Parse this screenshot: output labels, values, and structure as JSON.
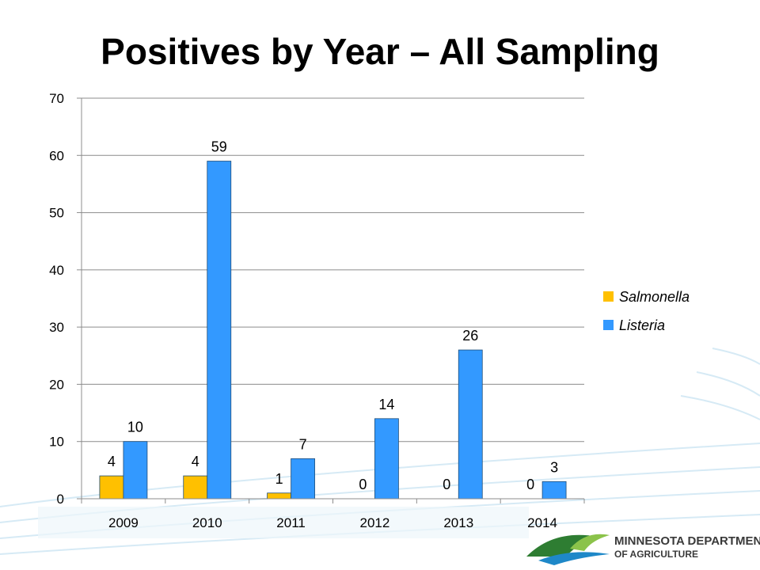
{
  "slide": {
    "title": "Positives by Year – All Sampling"
  },
  "logo": {
    "line1": "MINNESOTA DEPARTMENT",
    "line2": "OF AGRICULTURE"
  },
  "chart_data": {
    "type": "bar",
    "title": "",
    "xlabel": "",
    "ylabel": "",
    "categories": [
      "2009",
      "2010",
      "2011",
      "2012",
      "2013",
      "2014"
    ],
    "series": [
      {
        "name": "Salmonella",
        "values": [
          4,
          4,
          1,
          0,
          0,
          0
        ],
        "color": "#FFC000"
      },
      {
        "name": "Listeria",
        "values": [
          10,
          59,
          7,
          14,
          26,
          3
        ],
        "color": "#3399FF"
      }
    ],
    "ylim": [
      0,
      70
    ],
    "yticks": [
      0,
      10,
      20,
      30,
      40,
      50,
      60,
      70
    ],
    "grid": true,
    "legend_position": "right",
    "data_labels": true
  }
}
